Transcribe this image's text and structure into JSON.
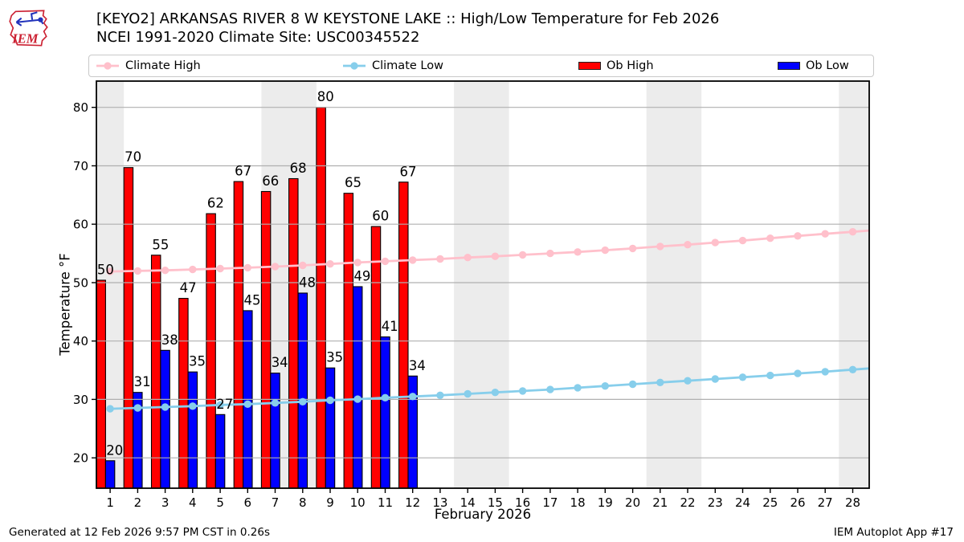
{
  "logo": {
    "text": "IEM"
  },
  "footer": {
    "generated": "Generated at 12 Feb 2026 9:57 PM CST in 0.26s",
    "app": "IEM Autoplot App #17"
  },
  "chart_data": {
    "type": "bar+line",
    "title": "[KEYO2] ARKANSAS RIVER 8 W KEYSTONE LAKE :: High/Low Temperature for Feb 2026",
    "subtitle": "NCEI 1991-2020 Climate Site: USC00345522",
    "xlabel": "February 2026",
    "ylabel": "Temperature °F",
    "xlim": [
      0.5,
      28.6
    ],
    "ylim": [
      14.8,
      84.5
    ],
    "yticks": [
      20,
      30,
      40,
      50,
      60,
      70,
      80
    ],
    "xticks": [
      1,
      2,
      3,
      4,
      5,
      6,
      7,
      8,
      9,
      10,
      11,
      12,
      13,
      14,
      15,
      16,
      17,
      18,
      19,
      20,
      21,
      22,
      23,
      24,
      25,
      26,
      27,
      28
    ],
    "grid": true,
    "legend_position": "top",
    "weekend_bands": [
      [
        0.5,
        1.5
      ],
      [
        6.5,
        8.5
      ],
      [
        13.5,
        15.5
      ],
      [
        20.5,
        22.5
      ],
      [
        27.5,
        28.6
      ]
    ],
    "colors": {
      "weekend_band": "#ececec",
      "grid": "#b0b0b0",
      "frame": "#000000"
    },
    "series": [
      {
        "name": "Climate High",
        "type": "line",
        "color": "#ffc0cb",
        "x": [
          1,
          2,
          3,
          4,
          5,
          6,
          7,
          8,
          9,
          10,
          11,
          12,
          13,
          14,
          15,
          16,
          17,
          18,
          19,
          20,
          21,
          22,
          23,
          24,
          25,
          26,
          27,
          28
        ],
        "values": [
          51.9,
          52.0,
          52.1,
          52.25,
          52.4,
          52.55,
          52.75,
          52.95,
          53.2,
          53.45,
          53.65,
          53.85,
          54.05,
          54.3,
          54.5,
          54.75,
          55.0,
          55.25,
          55.55,
          55.85,
          56.2,
          56.5,
          56.85,
          57.2,
          57.6,
          58.0,
          58.35,
          58.7
        ]
      },
      {
        "name": "Climate Low",
        "type": "line",
        "color": "#87ceeb",
        "x": [
          1,
          2,
          3,
          4,
          5,
          6,
          7,
          8,
          9,
          10,
          11,
          12,
          13,
          14,
          15,
          16,
          17,
          18,
          19,
          20,
          21,
          22,
          23,
          24,
          25,
          26,
          27,
          28
        ],
        "values": [
          28.4,
          28.55,
          28.7,
          28.85,
          29.05,
          29.2,
          29.4,
          29.6,
          29.85,
          30.05,
          30.3,
          30.5,
          30.7,
          30.95,
          31.2,
          31.45,
          31.7,
          32.0,
          32.3,
          32.6,
          32.9,
          33.2,
          33.5,
          33.8,
          34.1,
          34.45,
          34.75,
          35.1
        ]
      },
      {
        "name": "Ob High",
        "type": "bar",
        "color": "#ff0000",
        "days": [
          1,
          2,
          3,
          4,
          5,
          6,
          7,
          8,
          9,
          10,
          11,
          12
        ],
        "values": [
          50.4,
          69.7,
          54.7,
          47.3,
          61.8,
          67.3,
          65.6,
          67.8,
          80.0,
          65.3,
          59.6,
          67.2
        ],
        "labels": [
          50,
          70,
          55,
          47,
          62,
          67,
          66,
          68,
          80,
          65,
          60,
          67
        ]
      },
      {
        "name": "Ob Low",
        "type": "bar",
        "color": "#0000ff",
        "days": [
          1,
          2,
          3,
          4,
          5,
          6,
          7,
          8,
          9,
          10,
          11,
          12
        ],
        "values": [
          19.5,
          31.2,
          38.4,
          34.7,
          27.4,
          45.2,
          34.5,
          48.2,
          35.4,
          49.3,
          40.7,
          34.0
        ],
        "labels": [
          20,
          31,
          38,
          35,
          27,
          45,
          34,
          48,
          35,
          49,
          41,
          34
        ]
      }
    ]
  }
}
